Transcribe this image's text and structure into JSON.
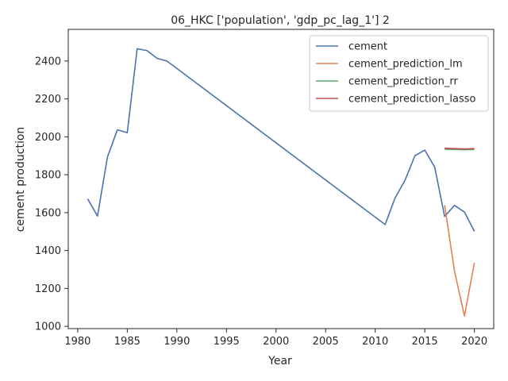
{
  "chart_data": {
    "type": "line",
    "title": "06_HKC ['population', 'gdp_pc_lag_1'] 2",
    "xlabel": "Year",
    "ylabel": "cement production",
    "xlim": [
      1979.05,
      2021.95
    ],
    "ylim": [
      988,
      2567
    ],
    "x_ticks": [
      1980,
      1985,
      1990,
      1995,
      2000,
      2005,
      2010,
      2015,
      2020
    ],
    "y_ticks": [
      1000,
      1200,
      1400,
      1600,
      1800,
      2000,
      2200,
      2400
    ],
    "grid": false,
    "legend_position": "top-right",
    "series": [
      {
        "name": "cement",
        "color": "#4c72b0",
        "x": [
          1981,
          1982,
          1983,
          1984,
          1985,
          1986,
          1987,
          1988,
          1989,
          2011,
          2012,
          2013,
          2014,
          2015,
          2016,
          2017,
          2018,
          2019,
          2020
        ],
        "y": [
          1673,
          1582,
          1893,
          2037,
          2022,
          2465,
          2455,
          2414,
          2400,
          1537,
          1677,
          1770,
          1900,
          1930,
          1840,
          1580,
          1638,
          1603,
          1501
        ]
      },
      {
        "name": "cement_prediction_lm",
        "color": "#dd8452",
        "x": [
          2017,
          2018,
          2019,
          2020
        ],
        "y": [
          1640,
          1290,
          1055,
          1335
        ]
      },
      {
        "name": "cement_prediction_rr",
        "color": "#55a868",
        "x": [
          2017,
          2018,
          2019,
          2020
        ],
        "y": [
          1935,
          1933,
          1932,
          1933
        ]
      },
      {
        "name": "cement_prediction_lasso",
        "color": "#c44e52",
        "x": [
          2017,
          2018,
          2019,
          2020
        ],
        "y": [
          1940,
          1938,
          1936,
          1938
        ]
      }
    ]
  }
}
